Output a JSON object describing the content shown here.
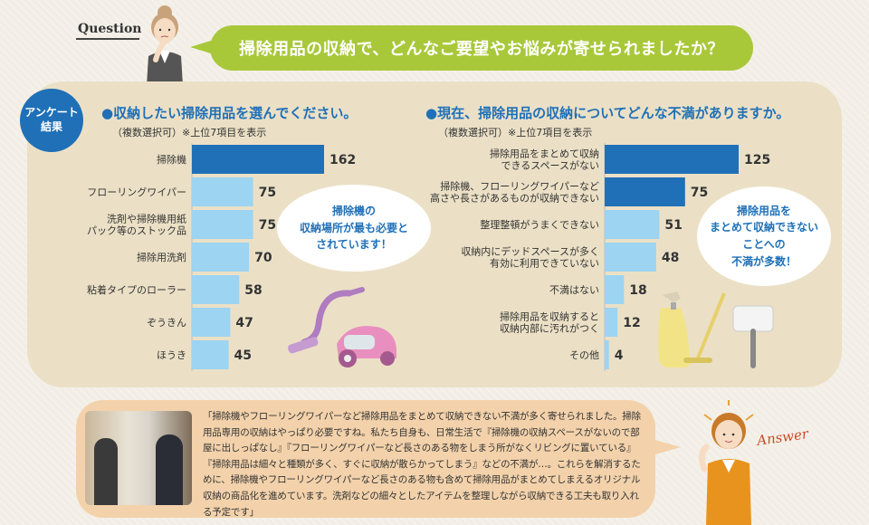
{
  "header": {
    "question_tag": "Question",
    "question_text": "掃除用品の収納で、どんなご要望やお悩みが寄せられましたか？"
  },
  "badge": {
    "line1": "アンケート",
    "line2": "結果"
  },
  "chart_data": [
    {
      "type": "bar",
      "orientation": "horizontal",
      "title": "●収納したい掃除用品を選んでください。",
      "subtitle": "（複数選択可）※上位7項目を表示",
      "categories": [
        "掃除機",
        "フローリングワイパー",
        "洗剤や掃除機用紙\nパック等のストック品",
        "掃除用洗剤",
        "粘着タイプのローラー",
        "ぞうきん",
        "ほうき"
      ],
      "values": [
        162,
        75,
        75,
        70,
        58,
        47,
        45
      ],
      "highlight": [
        0
      ],
      "colors": {
        "highlight": "#1f70b7",
        "normal": "#9cd4f2"
      },
      "xlim": [
        0,
        162
      ],
      "callout": "掃除機の\n収納場所が最も必要と\nされています！"
    },
    {
      "type": "bar",
      "orientation": "horizontal",
      "title": "●現在、掃除用品の収納についてどんな不満がありますか。",
      "subtitle": "（複数選択可）※上位7項目を表示",
      "categories": [
        "掃除用品をまとめて収納\nできるスペースがない",
        "掃除機、フローリングワイパーなど\n高さや長さがあるものが収納できない",
        "整理整頓がうまくできない",
        "収納内にデッドスペースが多く\n有効に利用できていない",
        "不満はない",
        "掃除用品を収納すると\n収納内部に汚れがつく",
        "その他"
      ],
      "values": [
        125,
        75,
        51,
        48,
        18,
        12,
        4
      ],
      "highlight": [
        0,
        1
      ],
      "colors": {
        "highlight": "#1f70b7",
        "normal": "#9cd4f2"
      },
      "xlim": [
        0,
        125
      ],
      "callout": "掃除用品を\nまとめて収納できない\nことへの\n不満が多数！"
    }
  ],
  "answer": {
    "tag": "Answer",
    "text": "「掃除機やフローリングワイパーなど掃除用品をまとめて収納できない不満が多く寄せられました。掃除用品専用の収納はやっぱり必要ですね。私たち自身も、日常生活で『掃除機の収納スペースがないので部屋に出しっぱなし』『フローリングワイパーなど長さのある物をしまう所がなくリビングに置いている』『掃除用品は細々と種類が多く、すぐに収納が散らかってしまう』などの不満が…。これらを解消するために、掃除機やフローリングワイパーなど長さのある物も含めて掃除用品がまとめてしまえるオリジナル収納の商品化を進めています。洗剤などの細々としたアイテムを整理しながら収納できる工夫も取り入れる予定です」"
  }
}
